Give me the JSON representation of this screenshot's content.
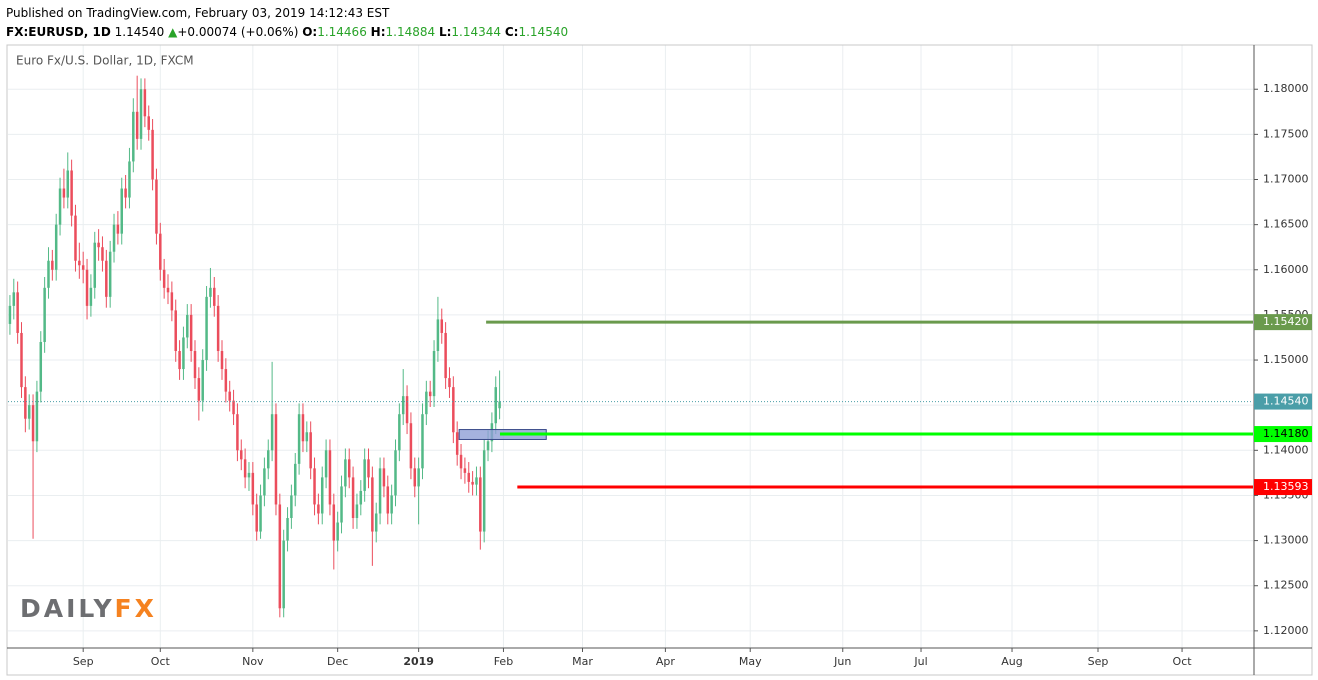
{
  "header": {
    "published": "Published on TradingView.com, February 03, 2019 14:12:43 EST",
    "symbol": "FX:EURUSD, 1D",
    "last": "1.14540",
    "arrow": "▲",
    "change": "+0.00074 (+0.06%)",
    "ohlc": [
      {
        "label": "O:",
        "value": "1.14466"
      },
      {
        "label": "H:",
        "value": "1.14884"
      },
      {
        "label": "L:",
        "value": "1.14344"
      },
      {
        "label": "C:",
        "value": "1.14540"
      }
    ]
  },
  "chart_data": {
    "type": "candlestick",
    "legend": "Euro Fx/U.S. Dollar, 1D, FXCM",
    "x": [
      -19,
      -18,
      -17,
      -16,
      -15,
      -14,
      -13,
      -12,
      -11,
      -10,
      -9,
      -8,
      -7,
      -6,
      -5,
      -4,
      -3,
      -2,
      -1,
      0,
      1,
      2,
      3,
      4,
      5,
      6,
      7,
      8,
      9,
      10,
      11,
      12,
      13,
      14,
      15,
      16,
      17,
      18,
      19,
      20,
      21,
      22,
      23,
      24,
      25,
      26,
      27,
      28,
      29,
      30,
      31,
      32,
      33,
      34,
      35,
      36,
      37,
      38,
      39,
      40,
      41,
      42,
      43,
      44,
      45,
      46,
      47,
      48,
      49,
      50,
      51,
      52,
      53,
      54,
      55,
      56,
      57,
      58,
      59,
      60,
      61,
      62,
      63,
      64,
      65,
      66,
      67,
      68,
      69,
      70,
      71,
      72,
      73,
      74,
      75,
      76,
      77,
      78,
      79,
      80,
      81,
      82,
      83,
      84,
      85,
      86,
      87,
      88,
      89,
      90,
      91,
      92,
      93,
      94,
      95,
      96,
      97,
      98,
      99,
      100,
      101,
      102,
      103,
      104,
      105,
      106,
      107,
      108
    ],
    "ohlc": [
      [
        1.154,
        1.1572,
        1.1528,
        1.156
      ],
      [
        1.156,
        1.159,
        1.1545,
        1.1575
      ],
      [
        1.1575,
        1.1587,
        1.1518,
        1.153
      ],
      [
        1.153,
        1.1542,
        1.1458,
        1.147
      ],
      [
        1.147,
        1.1482,
        1.142,
        1.1435
      ],
      [
        1.1435,
        1.1462,
        1.1423,
        1.145
      ],
      [
        1.145,
        1.1462,
        1.1302,
        1.141
      ],
      [
        1.141,
        1.1477,
        1.1398,
        1.1465
      ],
      [
        1.1465,
        1.1532,
        1.1453,
        1.152
      ],
      [
        1.152,
        1.1592,
        1.1508,
        1.158
      ],
      [
        1.158,
        1.1625,
        1.1568,
        1.161
      ],
      [
        1.161,
        1.1622,
        1.1588,
        1.16
      ],
      [
        1.16,
        1.1662,
        1.1588,
        1.165
      ],
      [
        1.165,
        1.1702,
        1.1638,
        1.169
      ],
      [
        1.169,
        1.1712,
        1.1668,
        1.168
      ],
      [
        1.168,
        1.173,
        1.1668,
        1.171
      ],
      [
        1.171,
        1.1722,
        1.1648,
        1.166
      ],
      [
        1.166,
        1.1672,
        1.1598,
        1.161
      ],
      [
        1.161,
        1.163,
        1.159,
        1.1605
      ],
      [
        1.1605,
        1.162,
        1.1585,
        1.16
      ],
      [
        1.16,
        1.1612,
        1.1545,
        1.156
      ],
      [
        1.156,
        1.1595,
        1.1548,
        1.158
      ],
      [
        1.158,
        1.1642,
        1.1568,
        1.163
      ],
      [
        1.163,
        1.1645,
        1.161,
        1.1625
      ],
      [
        1.1625,
        1.1637,
        1.1598,
        1.161
      ],
      [
        1.161,
        1.1622,
        1.1558,
        1.157
      ],
      [
        1.157,
        1.1632,
        1.1558,
        1.162
      ],
      [
        1.162,
        1.1662,
        1.1608,
        1.165
      ],
      [
        1.165,
        1.1665,
        1.1628,
        1.164
      ],
      [
        1.164,
        1.1702,
        1.1628,
        1.169
      ],
      [
        1.169,
        1.1705,
        1.1668,
        1.168
      ],
      [
        1.168,
        1.1735,
        1.1668,
        1.172
      ],
      [
        1.172,
        1.179,
        1.1708,
        1.1775
      ],
      [
        1.1775,
        1.1815,
        1.1733,
        1.1745
      ],
      [
        1.1745,
        1.1812,
        1.1733,
        1.18
      ],
      [
        1.18,
        1.1812,
        1.1758,
        1.177
      ],
      [
        1.177,
        1.1782,
        1.1743,
        1.1755
      ],
      [
        1.1755,
        1.1767,
        1.1688,
        1.17
      ],
      [
        1.17,
        1.1712,
        1.1628,
        1.164
      ],
      [
        1.164,
        1.1652,
        1.1588,
        1.16
      ],
      [
        1.16,
        1.1612,
        1.1568,
        1.158
      ],
      [
        1.158,
        1.1595,
        1.1562,
        1.1575
      ],
      [
        1.1575,
        1.1587,
        1.1543,
        1.1555
      ],
      [
        1.1555,
        1.1567,
        1.1498,
        1.151
      ],
      [
        1.151,
        1.1522,
        1.1478,
        1.149
      ],
      [
        1.149,
        1.1537,
        1.1478,
        1.1525
      ],
      [
        1.1525,
        1.1562,
        1.1513,
        1.155
      ],
      [
        1.155,
        1.1562,
        1.1498,
        1.151
      ],
      [
        1.151,
        1.1522,
        1.1468,
        1.148
      ],
      [
        1.148,
        1.1492,
        1.1433,
        1.1455
      ],
      [
        1.1455,
        1.1512,
        1.1443,
        1.15
      ],
      [
        1.15,
        1.1582,
        1.1488,
        1.157
      ],
      [
        1.157,
        1.1602,
        1.1558,
        1.158
      ],
      [
        1.158,
        1.1592,
        1.1548,
        1.156
      ],
      [
        1.156,
        1.1572,
        1.1498,
        1.151
      ],
      [
        1.151,
        1.1522,
        1.1478,
        1.149
      ],
      [
        1.149,
        1.1502,
        1.1453,
        1.1465
      ],
      [
        1.1465,
        1.1477,
        1.1443,
        1.1455
      ],
      [
        1.1455,
        1.1467,
        1.1428,
        1.144
      ],
      [
        1.144,
        1.1452,
        1.1388,
        1.14
      ],
      [
        1.14,
        1.1412,
        1.1378,
        1.139
      ],
      [
        1.139,
        1.1402,
        1.1358,
        1.137
      ],
      [
        1.137,
        1.1387,
        1.1355,
        1.1375
      ],
      [
        1.1375,
        1.1387,
        1.1328,
        1.134
      ],
      [
        1.134,
        1.1352,
        1.13,
        1.131
      ],
      [
        1.131,
        1.1362,
        1.1302,
        1.135
      ],
      [
        1.135,
        1.1392,
        1.1338,
        1.138
      ],
      [
        1.138,
        1.1412,
        1.1368,
        1.14
      ],
      [
        1.14,
        1.1498,
        1.1388,
        1.144
      ],
      [
        1.144,
        1.1452,
        1.1328,
        1.134
      ],
      [
        1.134,
        1.1352,
        1.1215,
        1.1225
      ],
      [
        1.1225,
        1.1312,
        1.1215,
        1.13
      ],
      [
        1.13,
        1.1337,
        1.1288,
        1.1325
      ],
      [
        1.1325,
        1.1362,
        1.1313,
        1.135
      ],
      [
        1.135,
        1.1397,
        1.1338,
        1.1385
      ],
      [
        1.1385,
        1.1452,
        1.1373,
        1.144
      ],
      [
        1.144,
        1.1452,
        1.1398,
        1.141
      ],
      [
        1.141,
        1.1432,
        1.1398,
        1.142
      ],
      [
        1.142,
        1.1432,
        1.1368,
        1.138
      ],
      [
        1.138,
        1.1392,
        1.1328,
        1.134
      ],
      [
        1.134,
        1.1352,
        1.1318,
        1.133
      ],
      [
        1.133,
        1.1382,
        1.1318,
        1.137
      ],
      [
        1.137,
        1.1412,
        1.1358,
        1.14
      ],
      [
        1.14,
        1.1412,
        1.1328,
        1.134
      ],
      [
        1.134,
        1.1352,
        1.1268,
        1.13
      ],
      [
        1.13,
        1.1332,
        1.1288,
        1.132
      ],
      [
        1.132,
        1.1372,
        1.1308,
        1.136
      ],
      [
        1.136,
        1.1402,
        1.1348,
        1.139
      ],
      [
        1.139,
        1.1402,
        1.1358,
        1.137
      ],
      [
        1.137,
        1.1382,
        1.1313,
        1.1325
      ],
      [
        1.1325,
        1.1352,
        1.1313,
        1.134
      ],
      [
        1.134,
        1.1367,
        1.1328,
        1.1355
      ],
      [
        1.1355,
        1.1402,
        1.1343,
        1.139
      ],
      [
        1.139,
        1.1402,
        1.1358,
        1.137
      ],
      [
        1.137,
        1.1382,
        1.1272,
        1.131
      ],
      [
        1.131,
        1.1342,
        1.1298,
        1.133
      ],
      [
        1.133,
        1.1392,
        1.1318,
        1.138
      ],
      [
        1.138,
        1.1392,
        1.1348,
        1.136
      ],
      [
        1.136,
        1.1372,
        1.1318,
        1.133
      ],
      [
        1.133,
        1.1362,
        1.1318,
        1.135
      ],
      [
        1.135,
        1.1412,
        1.1338,
        1.14
      ],
      [
        1.14,
        1.1452,
        1.1388,
        1.144
      ],
      [
        1.144,
        1.149,
        1.1428,
        1.146
      ],
      [
        1.146,
        1.1472,
        1.1418,
        1.143
      ],
      [
        1.143,
        1.1442,
        1.1368,
        1.138
      ],
      [
        1.138,
        1.1392,
        1.1348,
        1.136
      ],
      [
        1.136,
        1.1392,
        1.1318,
        1.138
      ],
      [
        1.138,
        1.1452,
        1.1368,
        1.144
      ],
      [
        1.144,
        1.1477,
        1.1428,
        1.1465
      ],
      [
        1.1465,
        1.1477,
        1.1448,
        1.146
      ],
      [
        1.146,
        1.1522,
        1.1448,
        1.151
      ],
      [
        1.151,
        1.157,
        1.1498,
        1.1545
      ],
      [
        1.1545,
        1.1557,
        1.1518,
        1.153
      ],
      [
        1.153,
        1.1542,
        1.1468,
        1.148
      ],
      [
        1.148,
        1.1492,
        1.1458,
        1.147
      ],
      [
        1.147,
        1.1482,
        1.1408,
        1.142
      ],
      [
        1.142,
        1.1432,
        1.1383,
        1.1395
      ],
      [
        1.1395,
        1.1407,
        1.1368,
        1.138
      ],
      [
        1.138,
        1.1392,
        1.1363,
        1.1375
      ],
      [
        1.1375,
        1.1387,
        1.1353,
        1.1365
      ],
      [
        1.1365,
        1.1377,
        1.135,
        1.1362
      ],
      [
        1.1362,
        1.1382,
        1.135,
        1.137
      ],
      [
        1.137,
        1.1382,
        1.129,
        1.131
      ],
      [
        1.131,
        1.1412,
        1.1298,
        1.14
      ],
      [
        1.14,
        1.1422,
        1.1388,
        1.141
      ],
      [
        1.141,
        1.1442,
        1.1398,
        1.143
      ],
      [
        1.143,
        1.1482,
        1.1418,
        1.147
      ],
      [
        1.14466,
        1.14884,
        1.14344,
        1.1454
      ]
    ],
    "up_color": "#53b987",
    "down_color": "#eb4d5c",
    "xlim": [
      -19.5,
      303.4
    ],
    "xticks": [
      {
        "value": 0,
        "label": "Sep"
      },
      {
        "value": 20,
        "label": "Oct"
      },
      {
        "value": 44,
        "label": "Nov"
      },
      {
        "value": 66,
        "label": "Dec"
      },
      {
        "value": 87,
        "label": "2019",
        "bold": true
      },
      {
        "value": 109,
        "label": "Feb"
      },
      {
        "value": 129.5,
        "label": "Mar"
      },
      {
        "value": 151,
        "label": "Apr"
      },
      {
        "value": 173,
        "label": "May"
      },
      {
        "value": 197,
        "label": "Jun"
      },
      {
        "value": 217.3,
        "label": "Jul"
      },
      {
        "value": 240.9,
        "label": "Aug"
      },
      {
        "value": 263.2,
        "label": "Sep"
      },
      {
        "value": 285,
        "label": "Oct"
      }
    ],
    "ylim": [
      1.1181,
      1.1849
    ],
    "yticks": [
      {
        "value": 1.12,
        "label": "1.12000"
      },
      {
        "value": 1.125,
        "label": "1.12500"
      },
      {
        "value": 1.13,
        "label": "1.13000"
      },
      {
        "value": 1.135,
        "label": "1.13500"
      },
      {
        "value": 1.14,
        "label": "1.14000"
      },
      {
        "value": 1.145,
        "label": "1.14500"
      },
      {
        "value": 1.15,
        "label": "1.15000"
      },
      {
        "value": 1.155,
        "label": "1.15500"
      },
      {
        "value": 1.16,
        "label": "1.16000"
      },
      {
        "value": 1.165,
        "label": "1.16500"
      },
      {
        "value": 1.17,
        "label": "1.17000"
      },
      {
        "value": 1.175,
        "label": "1.17500"
      },
      {
        "value": 1.18,
        "label": "1.18000"
      }
    ],
    "grid": true,
    "last_price": {
      "value": 1.1454,
      "label": "1.14540",
      "color": "#4a9ea8"
    },
    "levels": [
      {
        "value": 1.1542,
        "label": "1.15420",
        "color": "#6a9a4d",
        "text_color": "#ffffff",
        "x_start": 104.5
      },
      {
        "value": 1.1418,
        "label": "1.14180",
        "color": "#00ff00",
        "text_color": "#000000",
        "x_start": 108.1
      },
      {
        "value": 1.13593,
        "label": "1.13593",
        "color": "#ff0000",
        "text_color": "#ffffff",
        "x_start": 112.6
      }
    ],
    "zone": {
      "x": [
        97.5,
        120.1
      ],
      "y": [
        1.1412,
        1.1423
      ],
      "color": "#8f9fd6"
    }
  },
  "logo": {
    "part1": "DAILY",
    "part2": "FX"
  }
}
